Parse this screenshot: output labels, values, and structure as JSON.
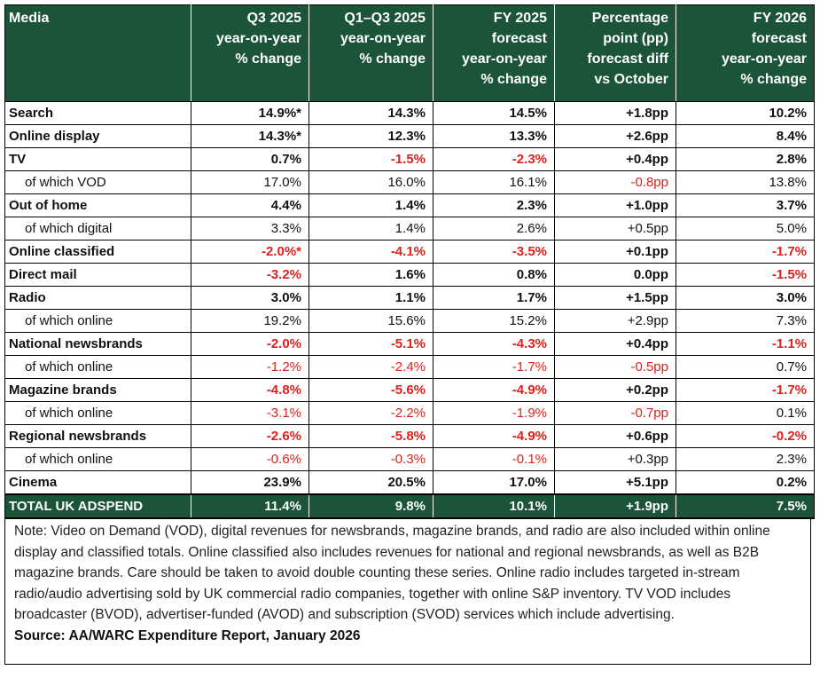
{
  "headers": [
    [
      "Media"
    ],
    [
      "Q3 2025",
      "year-on-year",
      "% change"
    ],
    [
      "Q1–Q3 2025",
      "year-on-year",
      "% change"
    ],
    [
      "FY 2025",
      "forecast",
      "year-on-year",
      "% change"
    ],
    [
      "Percentage",
      "point (pp)",
      "forecast diff",
      "vs October"
    ],
    [
      "FY 2026",
      "forecast",
      "year-on-year",
      "% change"
    ]
  ],
  "rows": [
    {
      "type": "main",
      "cells": [
        "Search",
        "14.9%*",
        "14.3%",
        "14.5%",
        "+1.8pp",
        "10.2%"
      ]
    },
    {
      "type": "main",
      "cells": [
        "Online display",
        "14.3%*",
        "12.3%",
        "13.3%",
        "+2.6pp",
        "8.4%"
      ]
    },
    {
      "type": "main",
      "cells": [
        "TV",
        "0.7%",
        "-1.5%",
        "-2.3%",
        "+0.4pp",
        "2.8%"
      ]
    },
    {
      "type": "sub",
      "cells": [
        "of which VOD",
        "17.0%",
        "16.0%",
        "16.1%",
        "-0.8pp",
        "13.8%"
      ]
    },
    {
      "type": "main",
      "cells": [
        "Out of home",
        "4.4%",
        "1.4%",
        "2.3%",
        "+1.0pp",
        "3.7%"
      ]
    },
    {
      "type": "sub",
      "cells": [
        "of which digital",
        "3.3%",
        "1.4%",
        "2.6%",
        "+0.5pp",
        "5.0%"
      ]
    },
    {
      "type": "main",
      "cells": [
        "Online classified",
        "-2.0%*",
        "-4.1%",
        "-3.5%",
        "+0.1pp",
        "-1.7%"
      ]
    },
    {
      "type": "main",
      "cells": [
        "Direct mail",
        "-3.2%",
        "1.6%",
        "0.8%",
        "0.0pp",
        "-1.5%"
      ]
    },
    {
      "type": "main",
      "cells": [
        "Radio",
        "3.0%",
        "1.1%",
        "1.7%",
        "+1.5pp",
        "3.0%"
      ]
    },
    {
      "type": "sub",
      "cells": [
        "of which online",
        "19.2%",
        "15.6%",
        "15.2%",
        "+2.9pp",
        "7.3%"
      ]
    },
    {
      "type": "main",
      "cells": [
        "National newsbrands",
        "-2.0%",
        "-5.1%",
        "-4.3%",
        "+0.4pp",
        "-1.1%"
      ]
    },
    {
      "type": "sub",
      "cells": [
        "of which online",
        "-1.2%",
        "-2.4%",
        "-1.7%",
        "-0.5pp",
        "0.7%"
      ]
    },
    {
      "type": "main",
      "cells": [
        "Magazine brands",
        "-4.8%",
        "-5.6%",
        "-4.9%",
        "+0.2pp",
        "-1.7%"
      ]
    },
    {
      "type": "sub",
      "cells": [
        "of which online",
        "-3.1%",
        "-2.2%",
        "-1.9%",
        "-0.7pp",
        "0.1%"
      ]
    },
    {
      "type": "main",
      "cells": [
        "Regional newsbrands",
        "-2.6%",
        "-5.8%",
        "-4.9%",
        "+0.6pp",
        "-0.2%"
      ]
    },
    {
      "type": "sub",
      "cells": [
        "of which online",
        "-0.6%",
        "-0.3%",
        "-0.1%",
        "+0.3pp",
        "2.3%"
      ]
    },
    {
      "type": "main",
      "cells": [
        "Cinema",
        "23.9%",
        "20.5%",
        "17.0%",
        "+5.1pp",
        "0.2%"
      ]
    },
    {
      "type": "total",
      "cells": [
        "TOTAL UK ADSPEND",
        "11.4%",
        "9.8%",
        "10.1%",
        "+1.9pp",
        "7.5%"
      ]
    }
  ],
  "note": "Note: Video on Demand (VOD), digital revenues for newsbrands, magazine brands, and radio are also included within online display and classified totals. Online classified also includes revenues for national and regional newsbrands, as well as B2B magazine brands. Care should be taken to avoid double counting these series. Online radio includes targeted in-stream radio/audio advertising sold by UK commercial radio companies, together with online S&P inventory. TV VOD includes broadcaster (BVOD), advertiser-funded (AVOD) and subscription (SVOD) services which include advertising.",
  "source": "Source: AA/WARC Expenditure Report, January 2026",
  "colors": {
    "header_bg": "#1b5439",
    "negative": "#e0201b"
  }
}
